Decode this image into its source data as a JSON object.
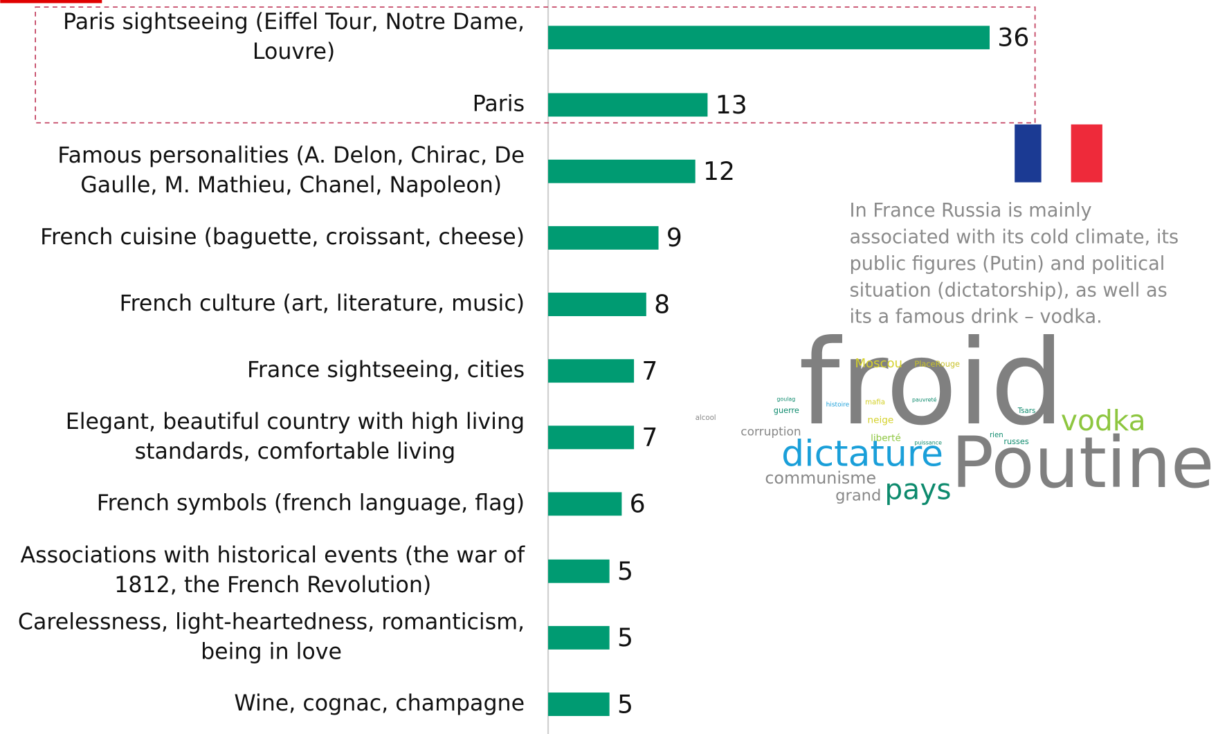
{
  "chart_data": {
    "type": "barh",
    "categories": [
      [
        "Paris sightseeing (Eiffel Tour, Notre Dame,",
        "Louvre)"
      ],
      [
        "Paris"
      ],
      [
        "Famous personalities (A. Delon, Chirac, De",
        "Gaulle, M. Mathieu, Chanel, Napoleon)"
      ],
      [
        "French cuisine (baguette, croissant, cheese)"
      ],
      [
        "French culture (art, literature, music)"
      ],
      [
        "France sightseeing, cities"
      ],
      [
        "Elegant, beautiful country with high living",
        "standards, comfortable living"
      ],
      [
        "French symbols (french language, flag)"
      ],
      [
        "Associations with historical events (the war of",
        "1812, the French Revolution)"
      ],
      [
        "Carelessness, light-heartedness, romanticism,",
        "being in love"
      ],
      [
        "Wine, cognac, champagne"
      ]
    ],
    "values": [
      36,
      13,
      12,
      9,
      8,
      7,
      7,
      6,
      5,
      5,
      5
    ],
    "color": "#009b72",
    "annotation": [
      "In France Russia is mainly",
      "associated with its cold climate, its",
      "public figures (Putin) and political",
      "situation (dictatorship), as well as",
      "its a famous drink – vodka."
    ],
    "word_cloud": [
      "froid",
      "Poutine",
      "dictature",
      "vodka",
      "pays",
      "communisme",
      "grand",
      "corruption",
      "Moscou",
      "PlaceRouge",
      "neige",
      "liberté",
      "guerre",
      "alcool",
      "histoire",
      "mafia",
      "russes",
      "rien",
      "Tsars",
      "puissance",
      "goulag",
      "pauvreté"
    ]
  }
}
